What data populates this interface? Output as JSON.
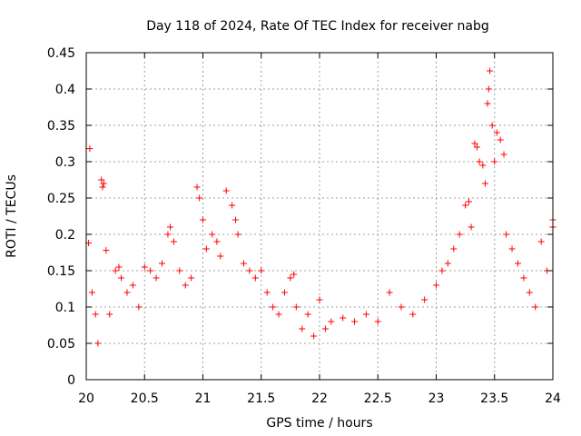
{
  "chart_data": {
    "type": "scatter",
    "title": "Day 118 of 2024, Rate Of TEC Index for receiver nabg",
    "xlabel": "GPS time / hours",
    "ylabel": "ROTI / TECUs",
    "xlim": [
      20,
      24
    ],
    "ylim": [
      0,
      0.45
    ],
    "x_ticks": [
      20,
      20.5,
      21,
      21.5,
      22,
      22.5,
      23,
      23.5,
      24
    ],
    "x_tick_labels": [
      "20",
      "20.5",
      "21",
      "21.5",
      "22",
      "22.5",
      "23",
      "23.5",
      "24"
    ],
    "y_ticks": [
      0,
      0.05,
      0.1,
      0.15,
      0.2,
      0.25,
      0.3,
      0.35,
      0.4,
      0.45
    ],
    "y_tick_labels": [
      "0",
      "0.05",
      "0.1",
      "0.15",
      "0.2",
      "0.25",
      "0.3",
      "0.35",
      "0.4",
      "0.45"
    ],
    "grid": true,
    "marker": "+",
    "marker_color": "#ff0000",
    "series": [
      {
        "name": "ROTI",
        "points": [
          [
            20.02,
            0.188
          ],
          [
            20.03,
            0.318
          ],
          [
            20.05,
            0.12
          ],
          [
            20.08,
            0.09
          ],
          [
            20.1,
            0.05
          ],
          [
            20.13,
            0.275
          ],
          [
            20.14,
            0.265
          ],
          [
            20.15,
            0.27
          ],
          [
            20.17,
            0.178
          ],
          [
            20.2,
            0.09
          ],
          [
            20.25,
            0.15
          ],
          [
            20.28,
            0.155
          ],
          [
            20.3,
            0.14
          ],
          [
            20.35,
            0.12
          ],
          [
            20.4,
            0.13
          ],
          [
            20.45,
            0.1
          ],
          [
            20.5,
            0.155
          ],
          [
            20.55,
            0.15
          ],
          [
            20.6,
            0.14
          ],
          [
            20.65,
            0.16
          ],
          [
            20.7,
            0.2
          ],
          [
            20.72,
            0.21
          ],
          [
            20.75,
            0.19
          ],
          [
            20.8,
            0.15
          ],
          [
            20.85,
            0.13
          ],
          [
            20.9,
            0.14
          ],
          [
            20.95,
            0.265
          ],
          [
            20.97,
            0.25
          ],
          [
            21.0,
            0.22
          ],
          [
            21.03,
            0.18
          ],
          [
            21.08,
            0.2
          ],
          [
            21.12,
            0.19
          ],
          [
            21.15,
            0.17
          ],
          [
            21.2,
            0.26
          ],
          [
            21.25,
            0.24
          ],
          [
            21.28,
            0.22
          ],
          [
            21.3,
            0.2
          ],
          [
            21.35,
            0.16
          ],
          [
            21.4,
            0.15
          ],
          [
            21.45,
            0.14
          ],
          [
            21.5,
            0.15
          ],
          [
            21.55,
            0.12
          ],
          [
            21.6,
            0.1
          ],
          [
            21.65,
            0.09
          ],
          [
            21.7,
            0.12
          ],
          [
            21.75,
            0.14
          ],
          [
            21.78,
            0.145
          ],
          [
            21.8,
            0.1
          ],
          [
            21.85,
            0.07
          ],
          [
            21.9,
            0.09
          ],
          [
            21.95,
            0.06
          ],
          [
            22.0,
            0.11
          ],
          [
            22.05,
            0.07
          ],
          [
            22.1,
            0.08
          ],
          [
            22.2,
            0.085
          ],
          [
            22.3,
            0.08
          ],
          [
            22.4,
            0.09
          ],
          [
            22.5,
            0.08
          ],
          [
            22.6,
            0.12
          ],
          [
            22.7,
            0.1
          ],
          [
            22.8,
            0.09
          ],
          [
            22.9,
            0.11
          ],
          [
            23.0,
            0.13
          ],
          [
            23.05,
            0.15
          ],
          [
            23.1,
            0.16
          ],
          [
            23.15,
            0.18
          ],
          [
            23.2,
            0.2
          ],
          [
            23.25,
            0.24
          ],
          [
            23.28,
            0.245
          ],
          [
            23.3,
            0.21
          ],
          [
            23.33,
            0.325
          ],
          [
            23.35,
            0.32
          ],
          [
            23.37,
            0.3
          ],
          [
            23.4,
            0.295
          ],
          [
            23.42,
            0.27
          ],
          [
            23.44,
            0.38
          ],
          [
            23.45,
            0.4
          ],
          [
            23.46,
            0.425
          ],
          [
            23.48,
            0.35
          ],
          [
            23.5,
            0.3
          ],
          [
            23.52,
            0.34
          ],
          [
            23.55,
            0.33
          ],
          [
            23.58,
            0.31
          ],
          [
            23.6,
            0.2
          ],
          [
            23.65,
            0.18
          ],
          [
            23.7,
            0.16
          ],
          [
            23.75,
            0.14
          ],
          [
            23.8,
            0.12
          ],
          [
            23.85,
            0.1
          ],
          [
            23.9,
            0.19
          ],
          [
            23.95,
            0.15
          ],
          [
            24.0,
            0.21
          ],
          [
            24.0,
            0.22
          ]
        ]
      }
    ]
  }
}
